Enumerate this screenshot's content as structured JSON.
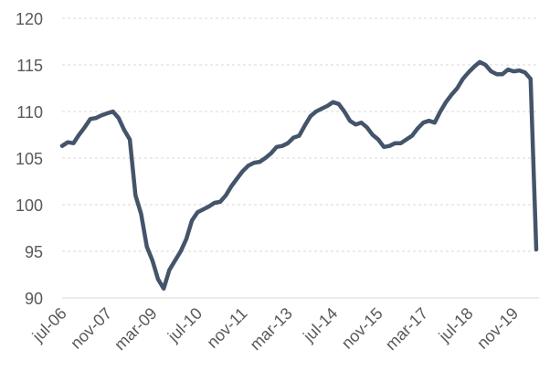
{
  "chart_data": {
    "type": "line",
    "categories": [
      "jul-06",
      null,
      null,
      null,
      null,
      null,
      null,
      null,
      "nov-07",
      null,
      null,
      null,
      null,
      null,
      null,
      null,
      "mar-09",
      null,
      null,
      null,
      null,
      null,
      null,
      null,
      "jul-10",
      null,
      null,
      null,
      null,
      null,
      null,
      null,
      "nov-11",
      null,
      null,
      null,
      null,
      null,
      null,
      null,
      "mar-13",
      null,
      null,
      null,
      null,
      null,
      null,
      null,
      "jul-14",
      null,
      null,
      null,
      null,
      null,
      null,
      null,
      "nov-15",
      null,
      null,
      null,
      null,
      null,
      null,
      null,
      "mar-17",
      null,
      null,
      null,
      null,
      null,
      null,
      null,
      "jul-18",
      null,
      null,
      null,
      null,
      null,
      null,
      null,
      "nov-19",
      null,
      null,
      null,
      null
    ],
    "values": [
      106.3,
      106.7,
      106.6,
      107.5,
      108.3,
      109.2,
      109.3,
      109.6,
      109.8,
      110.0,
      109.3,
      108.0,
      107.0,
      101.0,
      99.0,
      95.5,
      94.0,
      92.0,
      91.0,
      93.0,
      94.0,
      95.0,
      96.3,
      98.3,
      99.2,
      99.5,
      99.8,
      100.2,
      100.3,
      101.0,
      102.0,
      102.8,
      103.6,
      104.2,
      104.5,
      104.6,
      105.0,
      105.5,
      106.2,
      106.3,
      106.6,
      107.2,
      107.4,
      108.5,
      109.5,
      110.0,
      110.3,
      110.6,
      111.0,
      110.8,
      110.0,
      109.0,
      108.6,
      108.8,
      108.3,
      107.5,
      107.0,
      106.2,
      106.3,
      106.6,
      106.6,
      107.0,
      107.4,
      108.2,
      108.8,
      109.0,
      108.8,
      110.0,
      111.0,
      111.8,
      112.5,
      113.5,
      114.2,
      114.8,
      115.3,
      115.0,
      114.3,
      114.0,
      114.0,
      114.5,
      114.3,
      114.4,
      114.2,
      113.5,
      95.2
    ],
    "color": "#44546a",
    "ylim": [
      90,
      120
    ],
    "yticks": [
      90,
      95,
      100,
      105,
      110,
      115,
      120
    ],
    "grid": true
  }
}
